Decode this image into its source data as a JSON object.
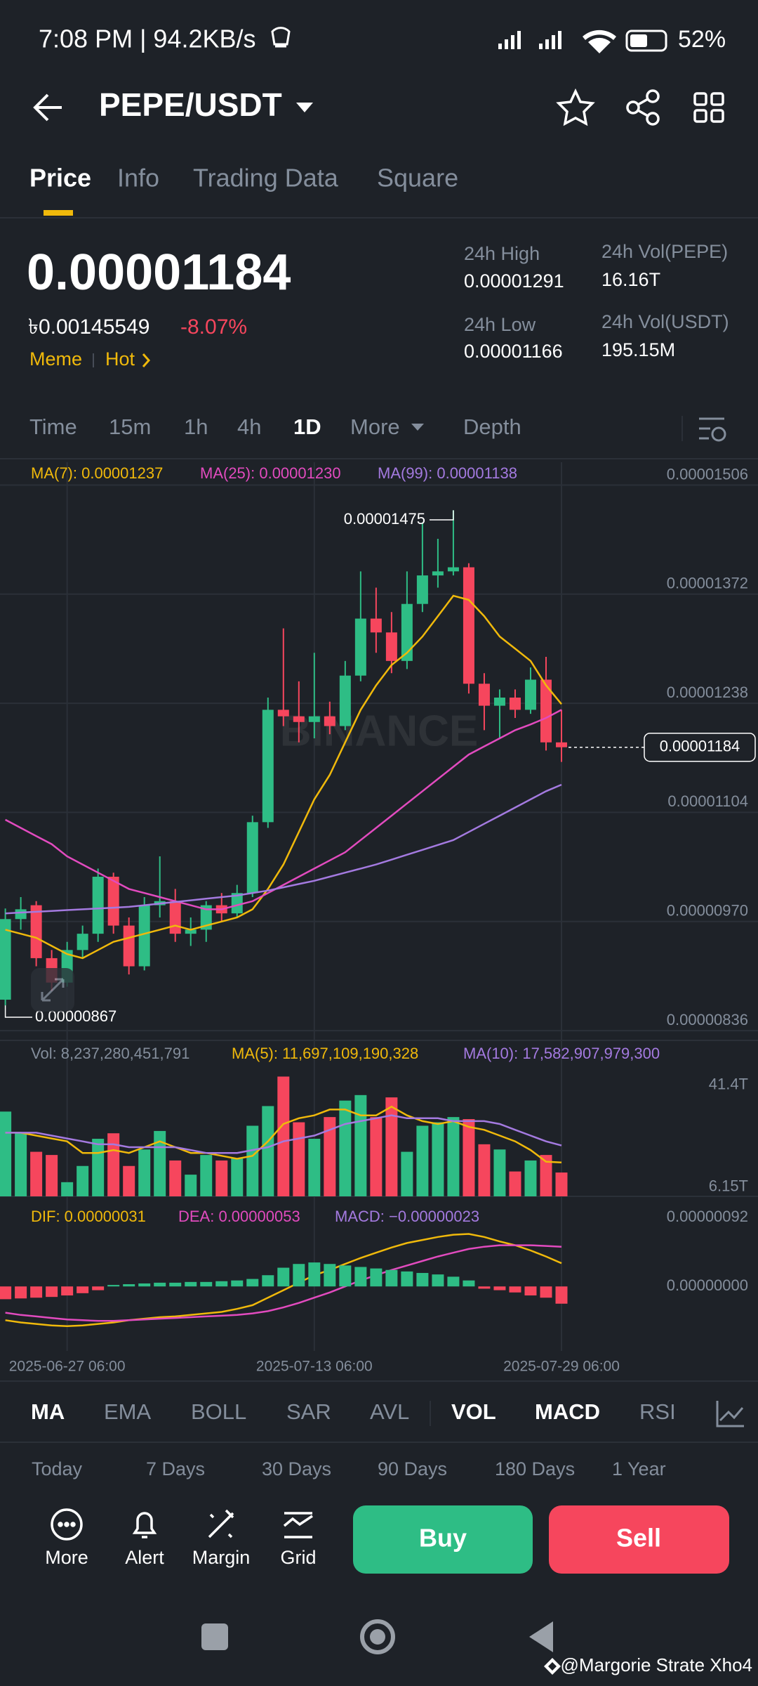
{
  "status_bar": {
    "time": "7:08 PM | 94.2KB/s",
    "battery": "52%"
  },
  "header": {
    "pair": "PEPE/USDT"
  },
  "tabs": [
    "Price",
    "Info",
    "Trading Data",
    "Square"
  ],
  "price": {
    "last": "0.00001184",
    "fiat": "৳0.00145549",
    "change": "-8.07%",
    "tags": [
      "Meme",
      "Hot"
    ]
  },
  "stats": [
    {
      "label": "24h High",
      "value": "0.00001291"
    },
    {
      "label": "24h Vol(PEPE)",
      "value": "16.16T"
    },
    {
      "label": "24h Low",
      "value": "0.00001166"
    },
    {
      "label": "24h Vol(USDT)",
      "value": "195.15M"
    }
  ],
  "timeframes": [
    "Time",
    "15m",
    "1h",
    "4h",
    "1D",
    "More",
    "Depth"
  ],
  "chart_data": [
    {
      "type": "candlestick",
      "grid": true,
      "up_color": "#2ebd85",
      "down_color": "#f6465d",
      "watermark": "BINANCE",
      "annotations": [
        "0.00001475",
        "0.00000867"
      ],
      "last_price_label": "0.00001184",
      "x": [
        "2025-06-23 06:00",
        "2025-06-24 06:00",
        "2025-06-25 06:00",
        "2025-06-26 06:00",
        "2025-06-27 06:00",
        "2025-06-28 06:00",
        "2025-06-29 06:00",
        "2025-06-30 06:00",
        "2025-07-01 06:00",
        "2025-07-02 06:00",
        "2025-07-03 06:00",
        "2025-07-04 06:00",
        "2025-07-05 06:00",
        "2025-07-06 06:00",
        "2025-07-07 06:00",
        "2025-07-08 06:00",
        "2025-07-09 06:00",
        "2025-07-10 06:00",
        "2025-07-11 06:00",
        "2025-07-12 06:00",
        "2025-07-13 06:00",
        "2025-07-14 06:00",
        "2025-07-15 06:00",
        "2025-07-16 06:00",
        "2025-07-17 06:00",
        "2025-07-18 06:00",
        "2025-07-19 06:00",
        "2025-07-20 06:00",
        "2025-07-21 06:00",
        "2025-07-22 06:00",
        "2025-07-23 06:00",
        "2025-07-24 06:00",
        "2025-07-25 06:00",
        "2025-07-26 06:00",
        "2025-07-27 06:00",
        "2025-07-28 06:00",
        "2025-07-29 06:00"
      ],
      "xticks": [
        "2025-06-27 06:00",
        "2025-07-13 06:00",
        "2025-07-29 06:00"
      ],
      "open": [
        8.74e-06,
        9.73e-06,
        9.9e-06,
        9.25e-06,
        8.95e-06,
        9.35e-06,
        9.55e-06,
        1.025e-05,
        9.65e-06,
        9.15e-06,
        9.9e-06,
        9.95e-06,
        9.55e-06,
        9.6e-06,
        9.9e-06,
        9.8e-06,
        1.005e-05,
        1.092e-05,
        1.23e-05,
        1.222e-05,
        1.215e-05,
        1.222e-05,
        1.21e-05,
        1.272e-05,
        1.342e-05,
        1.325e-05,
        1.29e-05,
        1.36e-05,
        1.395e-05,
        1.4e-05,
        1.405e-05,
        1.262e-05,
        1.235e-05,
        1.245e-05,
        1.23e-05,
        1.267e-05,
        1.19e-05
      ],
      "high": [
        9.86e-06,
        1e-05,
        9.95e-06,
        9.35e-06,
        9.45e-06,
        9.65e-06,
        1.035e-05,
        1.03e-05,
        9.75e-06,
        1e-05,
        1.05e-05,
        1.01e-05,
        9.75e-06,
        9.95e-06,
        1.005e-05,
        1.015e-05,
        1.1e-05,
        1.245e-05,
        1.33e-05,
        1.265e-05,
        1.3e-05,
        1.24e-05,
        1.29e-05,
        1.4e-05,
        1.38e-05,
        1.35e-05,
        1.4e-05,
        1.46e-05,
        1.44e-05,
        1.475e-05,
        1.41e-05,
        1.275e-05,
        1.255e-05,
        1.255e-05,
        1.282e-05,
        1.295e-05,
        1.23e-05
      ],
      "low": [
        8.67e-06,
        9.6e-06,
        9.15e-06,
        8.85e-06,
        8.9e-06,
        9.25e-06,
        9.45e-06,
        9.55e-06,
        9.05e-06,
        9.1e-06,
        9.75e-06,
        9.45e-06,
        9.4e-06,
        9.45e-06,
        9.7e-06,
        9.75e-06,
        1e-05,
        1.085e-05,
        1.21e-05,
        1.19e-05,
        1.195e-05,
        1.2e-05,
        1.205e-05,
        1.265e-05,
        1.3e-05,
        1.275e-05,
        1.28e-05,
        1.35e-05,
        1.38e-05,
        1.395e-05,
        1.25e-05,
        1.205e-05,
        1.195e-05,
        1.22e-05,
        1.225e-05,
        1.18e-05,
        1.166e-05
      ],
      "close": [
        9.73e-06,
        9.85e-06,
        9.25e-06,
        8.95e-06,
        9.35e-06,
        9.55e-06,
        1.025e-05,
        9.65e-06,
        9.15e-06,
        9.9e-06,
        9.95e-06,
        9.55e-06,
        9.6e-06,
        9.9e-06,
        9.8e-06,
        1.005e-05,
        1.092e-05,
        1.23e-05,
        1.222e-05,
        1.215e-05,
        1.222e-05,
        1.21e-05,
        1.272e-05,
        1.342e-05,
        1.325e-05,
        1.29e-05,
        1.36e-05,
        1.395e-05,
        1.4e-05,
        1.405e-05,
        1.262e-05,
        1.235e-05,
        1.245e-05,
        1.23e-05,
        1.267e-05,
        1.19e-05,
        1.184e-05
      ],
      "ylim": [
        8.24e-06,
        1.534e-05
      ],
      "yticks": [
        1.506e-05,
        1.372e-05,
        1.238e-05,
        1.104e-05,
        {
          "value": 9.7e-06,
          "label": "0.00000970"
        },
        8.36e-06
      ],
      "series": [
        {
          "name": "MA(7): 0.00001237",
          "color": "#f0b90b",
          "type": "line",
          "values": [
            9.6e-06,
            9.55e-06,
            9.5e-06,
            9.4e-06,
            9.3e-06,
            9.25e-06,
            9.35e-06,
            9.45e-06,
            9.5e-06,
            9.55e-06,
            9.6e-06,
            9.65e-06,
            9.6e-06,
            9.65e-06,
            9.7e-06,
            9.75e-06,
            9.85e-06,
            1.01e-05,
            1.04e-05,
            1.08e-05,
            1.12e-05,
            1.15e-05,
            1.19e-05,
            1.23e-05,
            1.26e-05,
            1.285e-05,
            1.3e-05,
            1.32e-05,
            1.345e-05,
            1.37e-05,
            1.365e-05,
            1.345e-05,
            1.32e-05,
            1.305e-05,
            1.29e-05,
            1.26e-05,
            1.237e-05
          ]
        },
        {
          "name": "MA(25): 0.00001230",
          "color": "#e24bbf",
          "type": "line",
          "values": [
            1.095e-05,
            1.085e-05,
            1.075e-05,
            1.065e-05,
            1.05e-05,
            1.04e-05,
            1.03e-05,
            1.02e-05,
            1.01e-05,
            1.005e-05,
            1e-05,
            9.95e-06,
            9.9e-06,
            9.85e-06,
            9.85e-06,
            9.9e-06,
            9.95e-06,
            1.005e-05,
            1.015e-05,
            1.025e-05,
            1.035e-05,
            1.045e-05,
            1.055e-05,
            1.07e-05,
            1.085e-05,
            1.1e-05,
            1.115e-05,
            1.13e-05,
            1.145e-05,
            1.16e-05,
            1.175e-05,
            1.185e-05,
            1.195e-05,
            1.205e-05,
            1.212e-05,
            1.22e-05,
            1.23e-05
          ]
        },
        {
          "name": "MA(99): 0.00001138",
          "color": "#a47ae0",
          "type": "line",
          "values": [
            9.8e-06,
            9.81e-06,
            9.82e-06,
            9.83e-06,
            9.84e-06,
            9.85e-06,
            9.86e-06,
            9.87e-06,
            9.88e-06,
            9.9e-06,
            9.92e-06,
            9.94e-06,
            9.96e-06,
            9.98e-06,
            1e-05,
            1.002e-05,
            1.005e-05,
            1.008e-05,
            1.012e-05,
            1.016e-05,
            1.02e-05,
            1.025e-05,
            1.03e-05,
            1.035e-05,
            1.04e-05,
            1.046e-05,
            1.052e-05,
            1.058e-05,
            1.064e-05,
            1.07e-05,
            1.08e-05,
            1.09e-05,
            1.1e-05,
            1.11e-05,
            1.12e-05,
            1.13e-05,
            1.138e-05
          ]
        }
      ]
    },
    {
      "type": "bar",
      "grid": false,
      "up_color": "#2ebd85",
      "down_color": "#f6465d",
      "ylim": [
        0,
        42000000000000
      ],
      "yticks": [
        {
          "value": 41400000000000,
          "label": "41.4T"
        },
        {
          "value": 6150000000000,
          "label": "6.15T"
        }
      ],
      "series": [
        {
          "name": "Vol: 8,237,280,451,791",
          "type": "bar",
          "values": [
            29300000000000,
            21800000000000,
            15400000000000,
            14300000000000,
            4900000000000,
            10500000000000,
            19900000000000,
            21800000000000,
            10500000000000,
            16200000000000,
            22600000000000,
            12400000000000,
            7500000000000,
            14300000000000,
            12400000000000,
            13200000000000,
            24400000000000,
            31200000000000,
            41400000000000,
            25600000000000,
            19900000000000,
            27400000000000,
            33100000000000,
            35000000000000,
            27400000000000,
            34200000000000,
            15400000000000,
            24400000000000,
            25600000000000,
            27400000000000,
            26700000000000,
            18000000000000,
            16200000000000,
            8600000000000,
            12400000000000,
            14300000000000,
            8237280451791
          ]
        },
        {
          "name": "MA(5): 11,697,109,190,328",
          "color": "#f0b90b",
          "type": "line",
          "values": [
            22000000000000,
            22000000000000,
            21000000000000,
            20000000000000,
            19000000000000,
            15000000000000,
            15000000000000,
            16000000000000,
            15000000000000,
            17000000000000,
            19000000000000,
            17000000000000,
            15000000000000,
            15000000000000,
            14000000000000,
            13000000000000,
            14000000000000,
            19000000000000,
            25000000000000,
            27000000000000,
            28000000000000,
            30000000000000,
            30000000000000,
            28000000000000,
            28000000000000,
            31000000000000,
            28000000000000,
            26000000000000,
            25000000000000,
            26000000000000,
            24000000000000,
            23000000000000,
            21000000000000,
            19000000000000,
            16000000000000,
            12000000000000,
            11697109190328
          ]
        },
        {
          "name": "MA(10): 17,582,907,979,300",
          "color": "#a47ae0",
          "type": "line",
          "values": [
            22000000000000,
            22000000000000,
            22000000000000,
            21000000000000,
            20000000000000,
            19000000000000,
            18000000000000,
            18000000000000,
            17000000000000,
            17000000000000,
            17000000000000,
            17000000000000,
            16000000000000,
            15000000000000,
            15000000000000,
            15000000000000,
            16000000000000,
            17000000000000,
            19000000000000,
            20000000000000,
            21000000000000,
            23000000000000,
            25000000000000,
            26000000000000,
            27000000000000,
            28000000000000,
            27000000000000,
            27000000000000,
            27000000000000,
            26000000000000,
            26000000000000,
            26000000000000,
            25000000000000,
            23000000000000,
            21000000000000,
            19000000000000,
            17582907979300
          ]
        }
      ]
    },
    {
      "type": "bar",
      "grid": false,
      "up_color": "#2ebd85",
      "down_color": "#f6465d",
      "ylim": [
        -8.6e-07,
        1.08e-06
      ],
      "yticks": [
        {
          "value": 9.2e-07,
          "label": "0.00000092"
        },
        {
          "value": 0,
          "label": "0.00000000"
        }
      ],
      "series": [
        {
          "name": "DIF: 0.00000031",
          "color": "#f0b90b",
          "type": "line",
          "values": [
            -4.5e-07,
            -4.8e-07,
            -5e-07,
            -5.2e-07,
            -5.3e-07,
            -5.2e-07,
            -5e-07,
            -4.8e-07,
            -4.5e-07,
            -4.3e-07,
            -4.1e-07,
            -4e-07,
            -3.8e-07,
            -3.6e-07,
            -3.4e-07,
            -3e-07,
            -2.5e-07,
            -1.5e-07,
            -5e-08,
            5e-08,
            1.5e-07,
            2.2e-07,
            3e-07,
            3.8e-07,
            4.5e-07,
            5.2e-07,
            5.8e-07,
            6.2e-07,
            6.6e-07,
            6.9e-07,
            7e-07,
            6.6e-07,
            6e-07,
            5.5e-07,
            4.8e-07,
            4e-07,
            3.1e-07
          ]
        },
        {
          "name": "DEA: 0.00000053",
          "color": "#e24bbf",
          "type": "line",
          "values": [
            -3.5e-07,
            -3.8e-07,
            -4e-07,
            -4.2e-07,
            -4.4e-07,
            -4.5e-07,
            -4.6e-07,
            -4.6e-07,
            -4.5e-07,
            -4.4e-07,
            -4.3e-07,
            -4.2e-07,
            -4.1e-07,
            -4e-07,
            -3.9e-07,
            -3.8e-07,
            -3.6e-07,
            -3.3e-07,
            -2.8e-07,
            -2.2e-07,
            -1.5e-07,
            -8e-08,
            0.0,
            8e-08,
            1.5e-07,
            2.2e-07,
            2.8e-07,
            3.4e-07,
            4e-07,
            4.5e-07,
            5e-07,
            5.3e-07,
            5.5e-07,
            5.5e-07,
            5.5e-07,
            5.4e-07,
            5.3e-07
          ]
        },
        {
          "name": "MACD: −0.00000023",
          "color": "#a47ae0",
          "type": "bar",
          "values": [
            -1.7e-07,
            -1.6e-07,
            -1.5e-07,
            -1.4e-07,
            -1.2e-07,
            -9e-08,
            -5e-08,
            2e-08,
            3e-08,
            4e-08,
            5e-08,
            5e-08,
            6e-08,
            6e-08,
            7e-08,
            8e-08,
            1e-07,
            1.5e-07,
            2.5e-07,
            3e-07,
            3.2e-07,
            3e-07,
            2.8e-07,
            2.6e-07,
            2.4e-07,
            2.2e-07,
            2e-07,
            1.8e-07,
            1.6e-07,
            1.3e-07,
            8e-08,
            -3e-08,
            -5e-08,
            -8e-08,
            -1.2e-07,
            -1.5e-07,
            -2.3e-07
          ]
        }
      ]
    }
  ],
  "indicators": [
    "MA",
    "EMA",
    "BOLL",
    "SAR",
    "AVL",
    "VOL",
    "MACD",
    "RSI"
  ],
  "periods": [
    "Today",
    "7 Days",
    "30 Days",
    "90 Days",
    "180 Days",
    "1 Year"
  ],
  "actions": [
    "More",
    "Alert",
    "Margin",
    "Grid"
  ],
  "buttons": {
    "buy": "Buy",
    "sell": "Sell"
  },
  "watermark": "@Margorie Strate Xho4"
}
